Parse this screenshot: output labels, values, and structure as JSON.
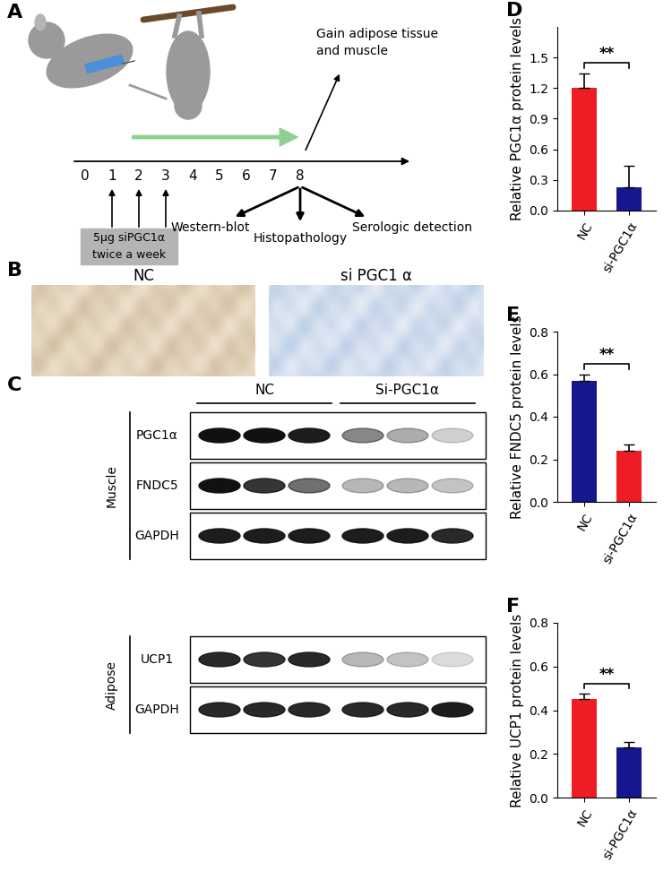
{
  "panel_labels": [
    "A",
    "B",
    "C",
    "D",
    "E",
    "F"
  ],
  "protocol": {
    "timeline": [
      0,
      1,
      2,
      3,
      4,
      5,
      6,
      7,
      8
    ],
    "dose_weeks": [
      1,
      2,
      3
    ],
    "dose_text": [
      "5μg siPGC1α",
      "twice a week"
    ],
    "harvest_week": 8,
    "harvest_text": [
      "Gain adipose tissue",
      "and muscle"
    ],
    "analyses": [
      "Western-blot",
      "Histopathology",
      "Serologic detection"
    ]
  },
  "histology": {
    "labels": [
      "NC",
      "si PGC1 α"
    ]
  },
  "western_blot": {
    "groups": [
      "NC",
      "Si-PGC1α"
    ],
    "lanes_per_group": 3,
    "tissues": [
      {
        "name": "Muscle",
        "rows": [
          {
            "label": "PGC1α",
            "intensity": [
              1.0,
              1.0,
              0.95,
              0.5,
              0.35,
              0.2
            ]
          },
          {
            "label": "FNDC5",
            "intensity": [
              1.0,
              0.85,
              0.6,
              0.3,
              0.3,
              0.25
            ]
          },
          {
            "label": "GAPDH",
            "intensity": [
              0.95,
              0.95,
              0.95,
              0.95,
              0.95,
              0.9
            ]
          }
        ]
      },
      {
        "name": "Adipose",
        "rows": [
          {
            "label": "UCP1",
            "intensity": [
              0.9,
              0.85,
              0.9,
              0.3,
              0.25,
              0.15
            ]
          },
          {
            "label": "GAPDH",
            "intensity": [
              0.9,
              0.9,
              0.9,
              0.9,
              0.9,
              0.95
            ]
          }
        ]
      }
    ]
  },
  "chart_data": [
    {
      "type": "bar",
      "ylabel": "Relative PGC1α protein levels",
      "categories": [
        "NC",
        "si-PGC1α"
      ],
      "values": [
        1.2,
        0.23
      ],
      "errors": [
        0.14,
        0.21
      ],
      "colors": [
        "#ee1c24",
        "#16168f"
      ],
      "ylim": [
        0,
        1.8
      ],
      "yticks": [
        {
          "value": 0,
          "label": "0.0"
        },
        0.3,
        0.6,
        0.9,
        1.2,
        1.5
      ],
      "annotations": [
        "**"
      ]
    },
    {
      "type": "bar",
      "ylabel": "Relative FNDC5 protein levels",
      "categories": [
        "NC",
        "si-PGC1α"
      ],
      "values": [
        0.57,
        0.24
      ],
      "errors": [
        0.03,
        0.03
      ],
      "colors": [
        "#16168f",
        "#ee1c24"
      ],
      "ylim": [
        0,
        0.8
      ],
      "yticks": [
        {
          "value": 0,
          "label": "0.0"
        },
        0.2,
        0.4,
        0.6,
        0.8
      ],
      "annotations": [
        "**"
      ]
    },
    {
      "type": "bar",
      "ylabel": "Relative UCP1 protein levels",
      "categories": [
        "NC",
        "si-PGC1α"
      ],
      "values": [
        0.45,
        0.23
      ],
      "errors": [
        0.025,
        0.025
      ],
      "colors": [
        "#ee1c24",
        "#16168f"
      ],
      "ylim": [
        0,
        0.8
      ],
      "yticks": [
        {
          "value": 0,
          "label": "0.0"
        },
        0.2,
        0.4,
        0.6,
        0.8
      ],
      "annotations": [
        "**"
      ]
    }
  ]
}
